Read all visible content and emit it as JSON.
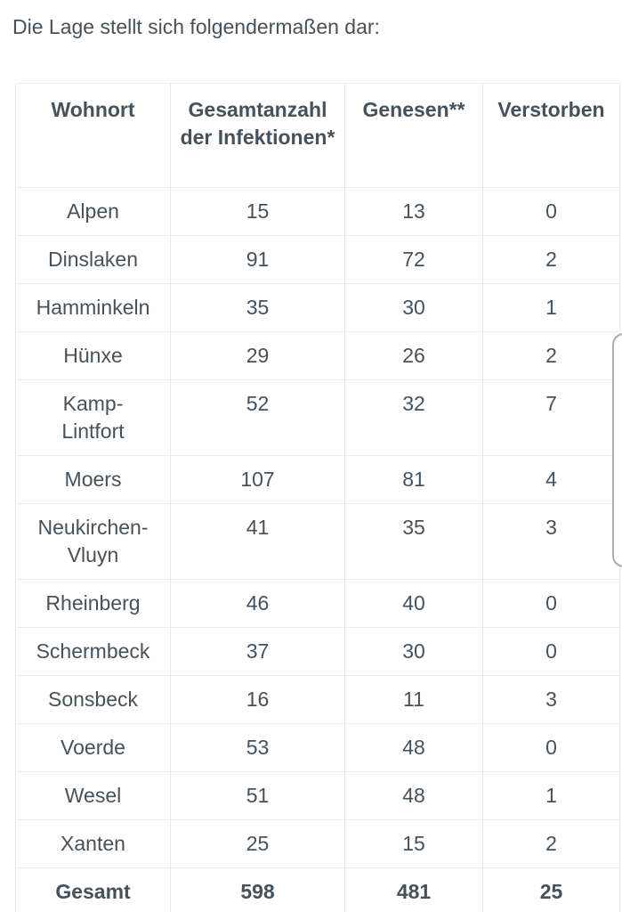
{
  "page": {
    "intro_text": "Die Lage stellt sich folgendermaßen dar:"
  },
  "colors": {
    "text": "#46525b",
    "grid_vertical": "#e9e9e9",
    "grid_horizontal": "#eeeeee",
    "outer_border": "#dcdcdc",
    "scrollbar": "#adadad",
    "background": "#ffffff"
  },
  "table": {
    "columns": [
      {
        "label": "Wohnort"
      },
      {
        "label": "Gesamtanzahl der Infektionen*"
      },
      {
        "label": "Genesen**"
      },
      {
        "label": "Verstorben"
      }
    ],
    "rows": [
      {
        "wohnort": "Alpen",
        "infektionen": "15",
        "genesen": "13",
        "verstorben": "0"
      },
      {
        "wohnort": "Dinslaken",
        "infektionen": "91",
        "genesen": "72",
        "verstorben": "2"
      },
      {
        "wohnort": "Hamminkeln",
        "infektionen": "35",
        "genesen": "30",
        "verstorben": "1"
      },
      {
        "wohnort": "Hünxe",
        "infektionen": "29",
        "genesen": "26",
        "verstorben": "2"
      },
      {
        "wohnort": "Kamp-Lintfort",
        "infektionen": "52",
        "genesen": "32",
        "verstorben": "7"
      },
      {
        "wohnort": "Moers",
        "infektionen": "107",
        "genesen": "81",
        "verstorben": "4"
      },
      {
        "wohnort": "Neukirchen-Vluyn",
        "infektionen": "41",
        "genesen": "35",
        "verstorben": "3"
      },
      {
        "wohnort": "Rheinberg",
        "infektionen": "46",
        "genesen": "40",
        "verstorben": "0"
      },
      {
        "wohnort": "Schermbeck",
        "infektionen": "37",
        "genesen": "30",
        "verstorben": "0"
      },
      {
        "wohnort": "Sonsbeck",
        "infektionen": "16",
        "genesen": "11",
        "verstorben": "3"
      },
      {
        "wohnort": "Voerde",
        "infektionen": "53",
        "genesen": "48",
        "verstorben": "0"
      },
      {
        "wohnort": "Wesel",
        "infektionen": "51",
        "genesen": "48",
        "verstorben": "1"
      },
      {
        "wohnort": "Xanten",
        "infektionen": "25",
        "genesen": "15",
        "verstorben": "2"
      }
    ],
    "total": {
      "wohnort": "Gesamt",
      "infektionen": "598",
      "genesen": "481",
      "verstorben": "25"
    }
  }
}
